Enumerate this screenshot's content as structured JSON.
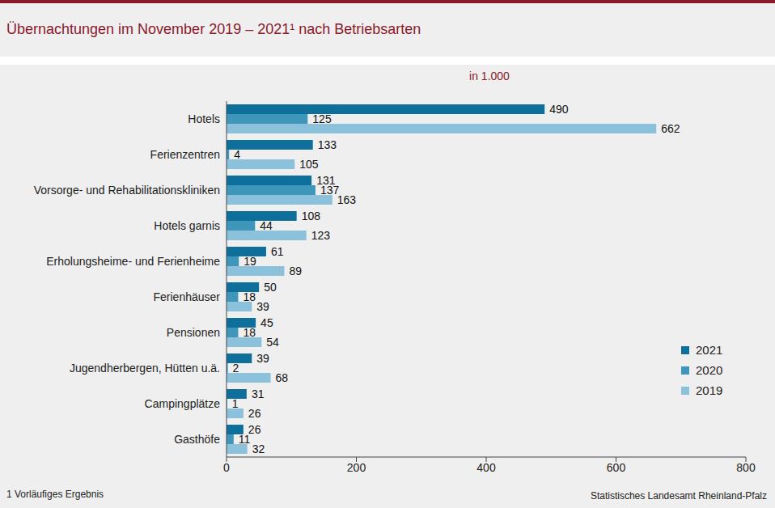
{
  "chart_data": {
    "type": "bar",
    "orientation": "horizontal",
    "title": "Übernachtungen im November 2019 – 2021¹ nach Betriebsarten",
    "subtitle": "in 1.000",
    "footnote": "1 Vorläufiges Ergebnis",
    "source": "Statistisches Landesamt Rheinland-Pfalz",
    "categories": [
      "Hotels",
      "Ferienzentren",
      "Vorsorge- und Rehabilitationskliniken",
      "Hotels garnis",
      "Erholungsheime- und Ferienheime",
      "Ferienhäuser",
      "Pensionen",
      "Jugendherbergen, Hütten u.ä.",
      "Campingplätze",
      "Gasthöfe"
    ],
    "series": [
      {
        "name": "2021",
        "color": "#0e6f9b",
        "values": [
          490,
          133,
          131,
          108,
          61,
          50,
          45,
          39,
          31,
          26
        ]
      },
      {
        "name": "2020",
        "color": "#3e97bb",
        "values": [
          125,
          4,
          137,
          44,
          19,
          18,
          18,
          2,
          1,
          11
        ]
      },
      {
        "name": "2019",
        "color": "#8cc1db",
        "values": [
          662,
          105,
          163,
          123,
          89,
          39,
          54,
          68,
          26,
          32
        ]
      }
    ],
    "xlim": [
      0,
      800
    ],
    "xticks": [
      0,
      200,
      400,
      600,
      800
    ],
    "data_labels": true,
    "legend": "lower right",
    "grid": false
  }
}
